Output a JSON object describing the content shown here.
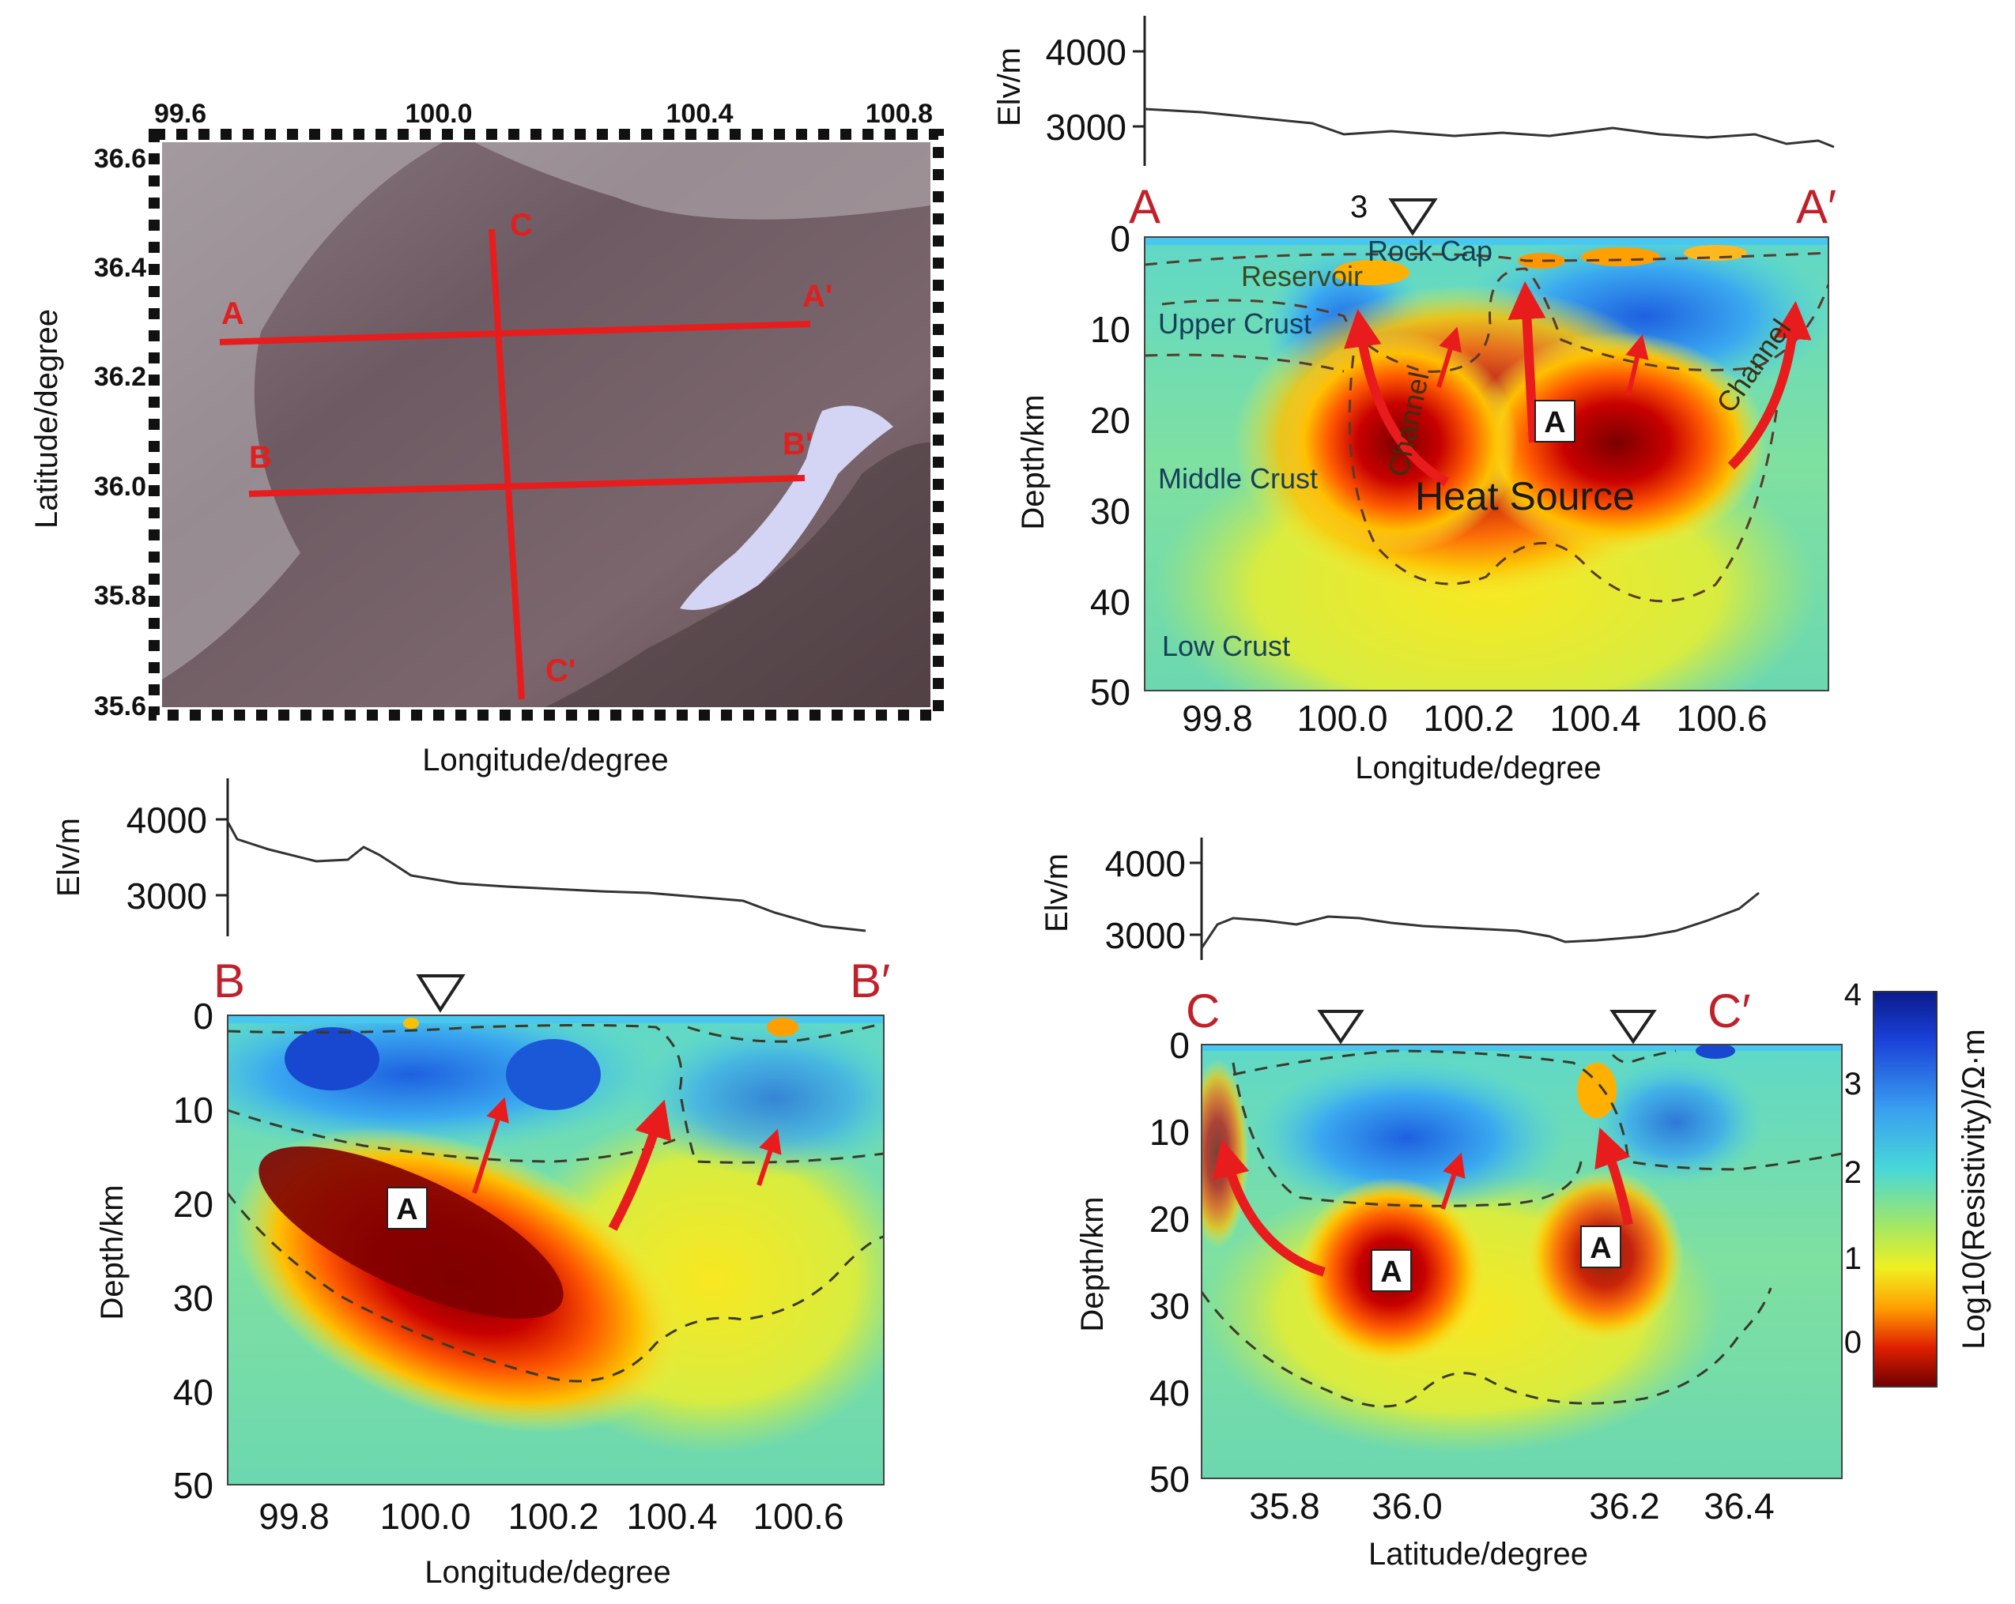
{
  "map": {
    "x_axis_label": "Longitude/degree",
    "y_axis_label": "Latitude/degree",
    "lon_ticks": [
      "99.6",
      "100.0",
      "100.4",
      "100.8"
    ],
    "lat_ticks": [
      "36.6",
      "36.4",
      "36.2",
      "36.0",
      "35.8",
      "35.6"
    ],
    "profiles": [
      {
        "name": "A-A'",
        "start_label": "A",
        "end_label": "A'"
      },
      {
        "name": "B-B'",
        "start_label": "B",
        "end_label": "B'"
      },
      {
        "name": "C-C'",
        "start_label": "C",
        "end_label": "C'"
      }
    ]
  },
  "panel_AA": {
    "elev_axis_label": "Elv/m",
    "elev_ticks": [
      "4000",
      "3000"
    ],
    "start_label": "A",
    "end_label": "A′",
    "station_number": "3",
    "depth_axis_label": "Depth/km",
    "depth_ticks": [
      "0",
      "10",
      "20",
      "30",
      "40",
      "50"
    ],
    "x_axis_label": "Longitude/degree",
    "x_ticks": [
      "99.8",
      "100.0",
      "100.2",
      "100.4",
      "100.6"
    ],
    "labels": {
      "rock_cap": "Rock Cap",
      "reservoir": "Reservoir",
      "upper_crust": "Upper Crust",
      "middle_crust": "Middle Crust",
      "low_crust": "Low Crust",
      "channel_left": "Channel",
      "channel_right": "Channel",
      "heat_source": "Heat Source",
      "anomaly": "A"
    }
  },
  "panel_BB": {
    "elev_axis_label": "Elv/m",
    "elev_ticks": [
      "4000",
      "3000"
    ],
    "start_label": "B",
    "end_label": "B′",
    "depth_axis_label": "Depth/km",
    "depth_ticks": [
      "0",
      "10",
      "20",
      "30",
      "40",
      "50"
    ],
    "x_axis_label": "Longitude/degree",
    "x_ticks": [
      "99.8",
      "100.0",
      "100.2",
      "100.4",
      "100.6"
    ],
    "anomaly": "A"
  },
  "panel_CC": {
    "elev_axis_label": "Elv/m",
    "elev_ticks": [
      "4000",
      "3000"
    ],
    "start_label": "C",
    "end_label": "C′",
    "depth_axis_label": "Depth/km",
    "depth_ticks": [
      "0",
      "10",
      "20",
      "30",
      "40",
      "50"
    ],
    "x_axis_label": "Latitude/degree",
    "x_ticks": [
      "35.8",
      "36.0",
      "36.2",
      "36.4"
    ],
    "anomaly_left": "A",
    "anomaly_right": "A"
  },
  "colorbar": {
    "label": "Log10(Resistivity)/Ω·m",
    "ticks": [
      "4",
      "3",
      "2",
      "1",
      "0"
    ]
  },
  "colors": {
    "profile_line": "#e81c1c",
    "end_label": "#c0202a",
    "background_resistivity": "#4fd4b8"
  }
}
